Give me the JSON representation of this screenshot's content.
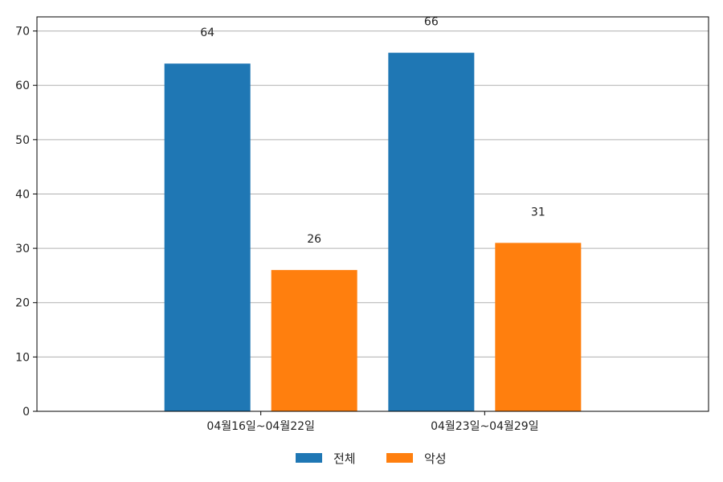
{
  "chart_data": {
    "type": "bar",
    "categories": [
      "04월16일~04월22일",
      "04월23일~04월29일"
    ],
    "series": [
      {
        "name": "전체",
        "values": [
          64,
          66
        ],
        "color": "#1f77b4"
      },
      {
        "name": "악성",
        "values": [
          26,
          31
        ],
        "color": "#ff7f0e"
      }
    ],
    "title": "",
    "xlabel": "",
    "ylabel": "",
    "ylim": [
      0,
      72.6
    ],
    "yticks": [
      0,
      10,
      20,
      30,
      40,
      50,
      60,
      70
    ],
    "grid": "horizontal",
    "legend_position": "bottom-center"
  }
}
